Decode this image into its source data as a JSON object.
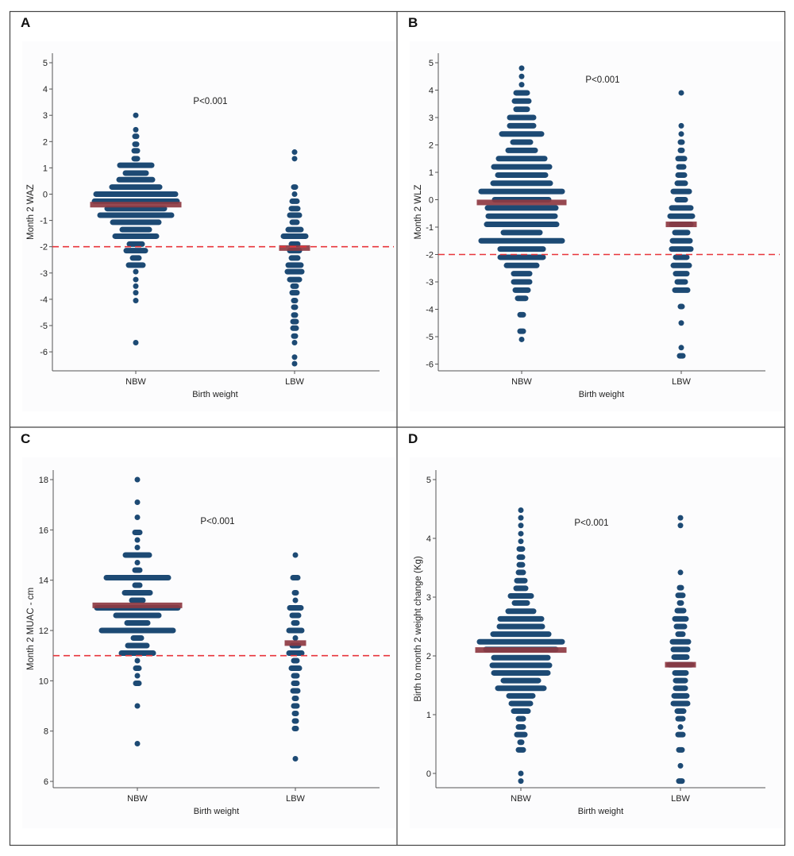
{
  "colors": {
    "dots": "#1d4a74",
    "mean": "#8e3a42",
    "reference_line": "#e8353b",
    "axis": "#555555"
  },
  "chart_data": [
    {
      "panel": "A",
      "type": "scatter",
      "subtype": "dot plot",
      "ylabel": "Month 2 WAZ",
      "xlabel": "Birth weight",
      "categories": [
        "NBW",
        "LBW"
      ],
      "yticks": [
        5,
        4,
        3,
        2,
        1,
        0,
        -1,
        -2,
        -3,
        -4,
        -5,
        -6
      ],
      "annotation": "P<0.001",
      "reference_line": -2,
      "groups": [
        {
          "name": "NBW",
          "mean": -0.4,
          "rows": [
            [
              3.0,
              1
            ],
            [
              2.45,
              1
            ],
            [
              2.2,
              2
            ],
            [
              1.9,
              2
            ],
            [
              1.65,
              3
            ],
            [
              1.35,
              3
            ],
            [
              1.1,
              21
            ],
            [
              0.8,
              14
            ],
            [
              0.55,
              22
            ],
            [
              0.27,
              31
            ],
            [
              0,
              51
            ],
            [
              -0.27,
              53
            ],
            [
              -0.55,
              37
            ],
            [
              -0.8,
              46
            ],
            [
              -1.07,
              30
            ],
            [
              -1.35,
              18
            ],
            [
              -1.6,
              27
            ],
            [
              -1.9,
              9
            ],
            [
              -2.15,
              13
            ],
            [
              -2.43,
              5
            ],
            [
              -2.7,
              10
            ],
            [
              -2.95,
              1
            ],
            [
              -3.25,
              1
            ],
            [
              -3.5,
              1
            ],
            [
              -3.75,
              1
            ],
            [
              -4.05,
              1
            ],
            [
              -5.65,
              1
            ]
          ]
        },
        {
          "name": "LBW",
          "mean": -2.05,
          "rows": [
            [
              1.6,
              1
            ],
            [
              1.35,
              1
            ],
            [
              0.27,
              2
            ],
            [
              0,
              1
            ],
            [
              -0.27,
              4
            ],
            [
              -0.55,
              5
            ],
            [
              -0.8,
              7
            ],
            [
              -1.07,
              4
            ],
            [
              -1.35,
              9
            ],
            [
              -1.6,
              15
            ],
            [
              -1.9,
              5
            ],
            [
              -2.15,
              7
            ],
            [
              -2.43,
              5
            ],
            [
              -2.7,
              9
            ],
            [
              -2.95,
              10
            ],
            [
              -3.25,
              7
            ],
            [
              -3.5,
              3
            ],
            [
              -3.75,
              4
            ],
            [
              -4.05,
              2
            ],
            [
              -4.3,
              2
            ],
            [
              -4.6,
              2
            ],
            [
              -4.85,
              3
            ],
            [
              -5.1,
              3
            ],
            [
              -5.4,
              2
            ],
            [
              -5.65,
              1
            ],
            [
              -6.2,
              1
            ],
            [
              -6.45,
              1
            ]
          ]
        }
      ]
    },
    {
      "panel": "B",
      "type": "scatter",
      "subtype": "dot plot",
      "ylabel": "Month 2 WLZ",
      "xlabel": "Birth weight",
      "categories": [
        "NBW",
        "LBW"
      ],
      "yticks": [
        5,
        4,
        3,
        2,
        1,
        0,
        -1,
        -2,
        -3,
        -4,
        -5,
        -6
      ],
      "annotation": "P<0.001",
      "reference_line": -2,
      "groups": [
        {
          "name": "NBW",
          "mean": -0.1,
          "rows": [
            [
              4.8,
              1
            ],
            [
              4.5,
              1
            ],
            [
              4.2,
              1
            ],
            [
              3.9,
              8
            ],
            [
              3.6,
              10
            ],
            [
              3.3,
              8
            ],
            [
              3.0,
              16
            ],
            [
              2.7,
              16
            ],
            [
              2.4,
              26
            ],
            [
              2.1,
              12
            ],
            [
              1.8,
              18
            ],
            [
              1.5,
              30
            ],
            [
              1.2,
              36
            ],
            [
              0.9,
              31
            ],
            [
              0.6,
              37
            ],
            [
              0.3,
              52
            ],
            [
              0,
              35
            ],
            [
              -0.3,
              44
            ],
            [
              -0.6,
              43
            ],
            [
              -0.9,
              45
            ],
            [
              -1.2,
              24
            ],
            [
              -1.5,
              52
            ],
            [
              -1.8,
              28
            ],
            [
              -2.1,
              28
            ],
            [
              -2.4,
              20
            ],
            [
              -2.7,
              11
            ],
            [
              -3.0,
              11
            ],
            [
              -3.3,
              9
            ],
            [
              -3.6,
              6
            ],
            [
              -4.2,
              3
            ],
            [
              -4.8,
              3
            ],
            [
              -5.1,
              1
            ]
          ]
        },
        {
          "name": "LBW",
          "mean": -0.9,
          "rows": [
            [
              3.9,
              1
            ],
            [
              2.7,
              1
            ],
            [
              2.4,
              1
            ],
            [
              2.1,
              2
            ],
            [
              1.8,
              2
            ],
            [
              1.5,
              5
            ],
            [
              1.2,
              4
            ],
            [
              0.9,
              5
            ],
            [
              0.6,
              6
            ],
            [
              0.3,
              11
            ],
            [
              0,
              6
            ],
            [
              -0.3,
              13
            ],
            [
              -0.6,
              15
            ],
            [
              -0.9,
              13
            ],
            [
              -1.2,
              9
            ],
            [
              -1.5,
              12
            ],
            [
              -1.8,
              13
            ],
            [
              -2.1,
              8
            ],
            [
              -2.4,
              11
            ],
            [
              -2.7,
              8
            ],
            [
              -3.0,
              6
            ],
            [
              -3.3,
              9
            ],
            [
              -3.9,
              2
            ],
            [
              -4.5,
              1
            ],
            [
              -5.4,
              1
            ],
            [
              -5.7,
              3
            ]
          ]
        }
      ]
    },
    {
      "panel": "C",
      "type": "scatter",
      "subtype": "dot plot",
      "ylabel": "Month 2 MUAC - cm",
      "xlabel": "Birth weight",
      "categories": [
        "NBW",
        "LBW"
      ],
      "yticks": [
        18,
        16,
        14,
        12,
        10,
        8,
        6
      ],
      "annotation": "P<0.001",
      "reference_line": 11,
      "groups": [
        {
          "name": "NBW",
          "mean": 13.0,
          "rows": [
            [
              18,
              1
            ],
            [
              17.1,
              1
            ],
            [
              16.5,
              1
            ],
            [
              15.9,
              4
            ],
            [
              15.6,
              1
            ],
            [
              15.3,
              1
            ],
            [
              15.0,
              16
            ],
            [
              14.7,
              1
            ],
            [
              14.4,
              4
            ],
            [
              14.1,
              40
            ],
            [
              13.8,
              4
            ],
            [
              13.5,
              17
            ],
            [
              13.2,
              8
            ],
            [
              12.9,
              52
            ],
            [
              12.6,
              28
            ],
            [
              12.3,
              14
            ],
            [
              12.0,
              46
            ],
            [
              11.7,
              6
            ],
            [
              11.4,
              13
            ],
            [
              11.1,
              21
            ],
            [
              10.8,
              1
            ],
            [
              10.5,
              3
            ],
            [
              10.2,
              1
            ],
            [
              9.9,
              3
            ],
            [
              9.0,
              1
            ],
            [
              7.5,
              1
            ]
          ]
        },
        {
          "name": "LBW",
          "mean": 11.5,
          "rows": [
            [
              15,
              1
            ],
            [
              14.1,
              4
            ],
            [
              13.5,
              2
            ],
            [
              13.2,
              1
            ],
            [
              12.9,
              8
            ],
            [
              12.6,
              5
            ],
            [
              12.3,
              3
            ],
            [
              12.0,
              9
            ],
            [
              11.7,
              1
            ],
            [
              11.4,
              5
            ],
            [
              11.1,
              9
            ],
            [
              10.8,
              3
            ],
            [
              10.5,
              6
            ],
            [
              10.2,
              3
            ],
            [
              9.9,
              3
            ],
            [
              9.6,
              4
            ],
            [
              9.3,
              2
            ],
            [
              9.0,
              3
            ],
            [
              8.7,
              2
            ],
            [
              8.4,
              2
            ],
            [
              8.1,
              2
            ],
            [
              6.9,
              1
            ]
          ]
        }
      ]
    },
    {
      "panel": "D",
      "type": "scatter",
      "subtype": "dot plot",
      "ylabel": "Birth to month 2 weight change (Kg)",
      "xlabel": "Birth weight",
      "categories": [
        "NBW",
        "LBW"
      ],
      "yticks": [
        5,
        4,
        3,
        2,
        1,
        0
      ],
      "annotation": "P<0.001",
      "reference_line": null,
      "groups": [
        {
          "name": "NBW",
          "mean": 2.1,
          "rows": [
            [
              4.48,
              1
            ],
            [
              4.35,
              1
            ],
            [
              4.22,
              1
            ],
            [
              4.08,
              1
            ],
            [
              3.95,
              1
            ],
            [
              3.82,
              3
            ],
            [
              3.68,
              3
            ],
            [
              3.55,
              3
            ],
            [
              3.42,
              4
            ],
            [
              3.28,
              6
            ],
            [
              3.15,
              7
            ],
            [
              3.02,
              14
            ],
            [
              2.9,
              9
            ],
            [
              2.76,
              17
            ],
            [
              2.63,
              27
            ],
            [
              2.5,
              28
            ],
            [
              2.37,
              36
            ],
            [
              2.24,
              53
            ],
            [
              2.11,
              45
            ],
            [
              1.97,
              35
            ],
            [
              1.84,
              37
            ],
            [
              1.71,
              35
            ],
            [
              1.58,
              23
            ],
            [
              1.45,
              30
            ],
            [
              1.32,
              16
            ],
            [
              1.19,
              13
            ],
            [
              1.06,
              10
            ],
            [
              0.93,
              4
            ],
            [
              0.79,
              4
            ],
            [
              0.66,
              6
            ],
            [
              0.53,
              2
            ],
            [
              0.4,
              4
            ],
            [
              0.0,
              1
            ],
            [
              -0.13,
              1
            ]
          ]
        },
        {
          "name": "LBW",
          "mean": 1.85,
          "rows": [
            [
              4.35,
              1
            ],
            [
              4.22,
              1
            ],
            [
              3.42,
              1
            ],
            [
              3.16,
              2
            ],
            [
              3.03,
              4
            ],
            [
              2.9,
              2
            ],
            [
              2.77,
              5
            ],
            [
              2.63,
              8
            ],
            [
              2.5,
              6
            ],
            [
              2.37,
              4
            ],
            [
              2.24,
              11
            ],
            [
              2.11,
              10
            ],
            [
              1.98,
              9
            ],
            [
              1.85,
              15
            ],
            [
              1.71,
              8
            ],
            [
              1.58,
              7
            ],
            [
              1.45,
              7
            ],
            [
              1.32,
              9
            ],
            [
              1.19,
              10
            ],
            [
              1.06,
              5
            ],
            [
              0.93,
              4
            ],
            [
              0.79,
              1
            ],
            [
              0.66,
              4
            ],
            [
              0.4,
              3
            ],
            [
              0.13,
              1
            ],
            [
              -0.13,
              3
            ]
          ]
        }
      ]
    }
  ]
}
